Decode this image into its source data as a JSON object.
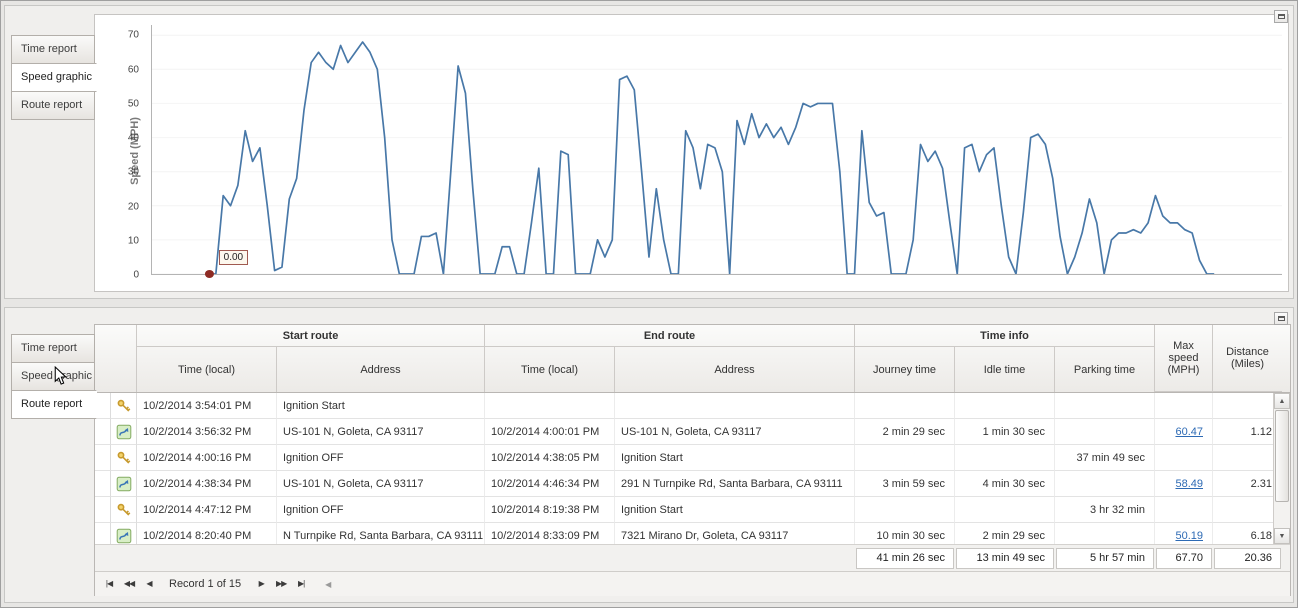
{
  "panels": {
    "top": {
      "tabs": [
        "Time report",
        "Speed graphic",
        "Route report"
      ],
      "selected_tab": "Speed graphic"
    },
    "bottom": {
      "tabs": [
        "Time report",
        "Speed graphic",
        "Route report"
      ],
      "selected_tab": "Route report"
    }
  },
  "chart_data": {
    "type": "line",
    "title": "",
    "xlabel": "",
    "ylabel": "Speed (MPH)",
    "yticks": [
      0,
      10,
      20,
      30,
      40,
      50,
      60,
      70
    ],
    "ylim": [
      0,
      73
    ],
    "grid": "off",
    "legend": "none",
    "line_color": "#4878a8",
    "marker": {
      "value": 0,
      "label": "0.00",
      "color": "#8e2b24"
    },
    "values": [
      0,
      0,
      23,
      20,
      26,
      42,
      33,
      37,
      20,
      1,
      2,
      22,
      28,
      48,
      62,
      65,
      62,
      60,
      67,
      62,
      65,
      68,
      65,
      60,
      40,
      10,
      0,
      0,
      0,
      11,
      11,
      12,
      0,
      30,
      61,
      53,
      25,
      0,
      0,
      0,
      8,
      8,
      0,
      0,
      15,
      31,
      0,
      0,
      36,
      35,
      0,
      0,
      0,
      10,
      5,
      10,
      57,
      58,
      54,
      30,
      5,
      25,
      10,
      0,
      0,
      42,
      37,
      25,
      38,
      37,
      30,
      0,
      45,
      38,
      47,
      40,
      44,
      40,
      43,
      38,
      43,
      50,
      49,
      50,
      50,
      50,
      30,
      0,
      0,
      42,
      21,
      17,
      18,
      0,
      0,
      0,
      10,
      38,
      33,
      36,
      31,
      15,
      0,
      37,
      38,
      30,
      35,
      37,
      20,
      5,
      0,
      18,
      40,
      41,
      38,
      28,
      11,
      0,
      5,
      12,
      22,
      15,
      0,
      10,
      12,
      12,
      13,
      12,
      15,
      23,
      17,
      15,
      15,
      13,
      12,
      4,
      0,
      0
    ]
  },
  "grid": {
    "group_headers": [
      "Start route",
      "End route",
      "Time info"
    ],
    "columns": {
      "start_time": "Time (local)",
      "start_address": "Address",
      "end_time": "Time (local)",
      "end_address": "Address",
      "journey": "Journey time",
      "idle": "Idle time",
      "parking": "Parking time",
      "max_speed": "Max speed (MPH)",
      "distance": "Distance (Miles)"
    },
    "rows": [
      {
        "icon": "key",
        "start_time": "10/2/2014 3:54:01 PM",
        "start_address": "Ignition Start",
        "end_time": "",
        "end_address": "",
        "journey": "",
        "idle": "",
        "parking": "",
        "max_speed": "",
        "max_speed_link": false,
        "distance": ""
      },
      {
        "icon": "route",
        "start_time": "10/2/2014 3:56:32 PM",
        "start_address": "US-101 N, Goleta, CA 93117",
        "end_time": "10/2/2014 4:00:01 PM",
        "end_address": "US-101 N, Goleta, CA 93117",
        "journey": "2 min 29 sec",
        "idle": "1 min 30 sec",
        "parking": "",
        "max_speed": "60.47",
        "max_speed_link": true,
        "distance": "1.12"
      },
      {
        "icon": "key",
        "start_time": "10/2/2014 4:00:16 PM",
        "start_address": "Ignition OFF",
        "end_time": "10/2/2014 4:38:05 PM",
        "end_address": "Ignition Start",
        "journey": "",
        "idle": "",
        "parking": "37 min 49 sec",
        "max_speed": "",
        "max_speed_link": false,
        "distance": ""
      },
      {
        "icon": "route",
        "start_time": "10/2/2014 4:38:34 PM",
        "start_address": "US-101 N, Goleta, CA 93117",
        "end_time": "10/2/2014 4:46:34 PM",
        "end_address": "291 N Turnpike Rd, Santa Barbara, CA 93111",
        "journey": "3 min 59 sec",
        "idle": "4 min 30 sec",
        "parking": "",
        "max_speed": "58.49",
        "max_speed_link": true,
        "distance": "2.31"
      },
      {
        "icon": "key",
        "start_time": "10/2/2014 4:47:12 PM",
        "start_address": "Ignition OFF",
        "end_time": "10/2/2014 8:19:38 PM",
        "end_address": "Ignition Start",
        "journey": "",
        "idle": "",
        "parking": "3 hr 32 min",
        "max_speed": "",
        "max_speed_link": false,
        "distance": ""
      },
      {
        "icon": "route",
        "start_time": "10/2/2014 8:20:40 PM",
        "start_address": "N Turnpike Rd, Santa Barbara, CA 93111",
        "end_time": "10/2/2014 8:33:09 PM",
        "end_address": "7321 Mirano Dr, Goleta, CA 93117",
        "journey": "10 min 30 sec",
        "idle": "2 min 29 sec",
        "parking": "",
        "max_speed": "50.19",
        "max_speed_link": true,
        "distance": "6.18"
      }
    ],
    "summary": {
      "journey": "41 min 26 sec",
      "idle": "13 min 49 sec",
      "parking": "5 hr 57 min",
      "max_speed": "67.70",
      "distance": "20.36"
    },
    "navigator": {
      "record_text": "Record 1 of 15",
      "buttons_left": [
        "|◀",
        "◀◀",
        "◀"
      ],
      "buttons_right": [
        "▶",
        "▶▶",
        "▶|"
      ],
      "hscroll_left": "◀"
    }
  }
}
